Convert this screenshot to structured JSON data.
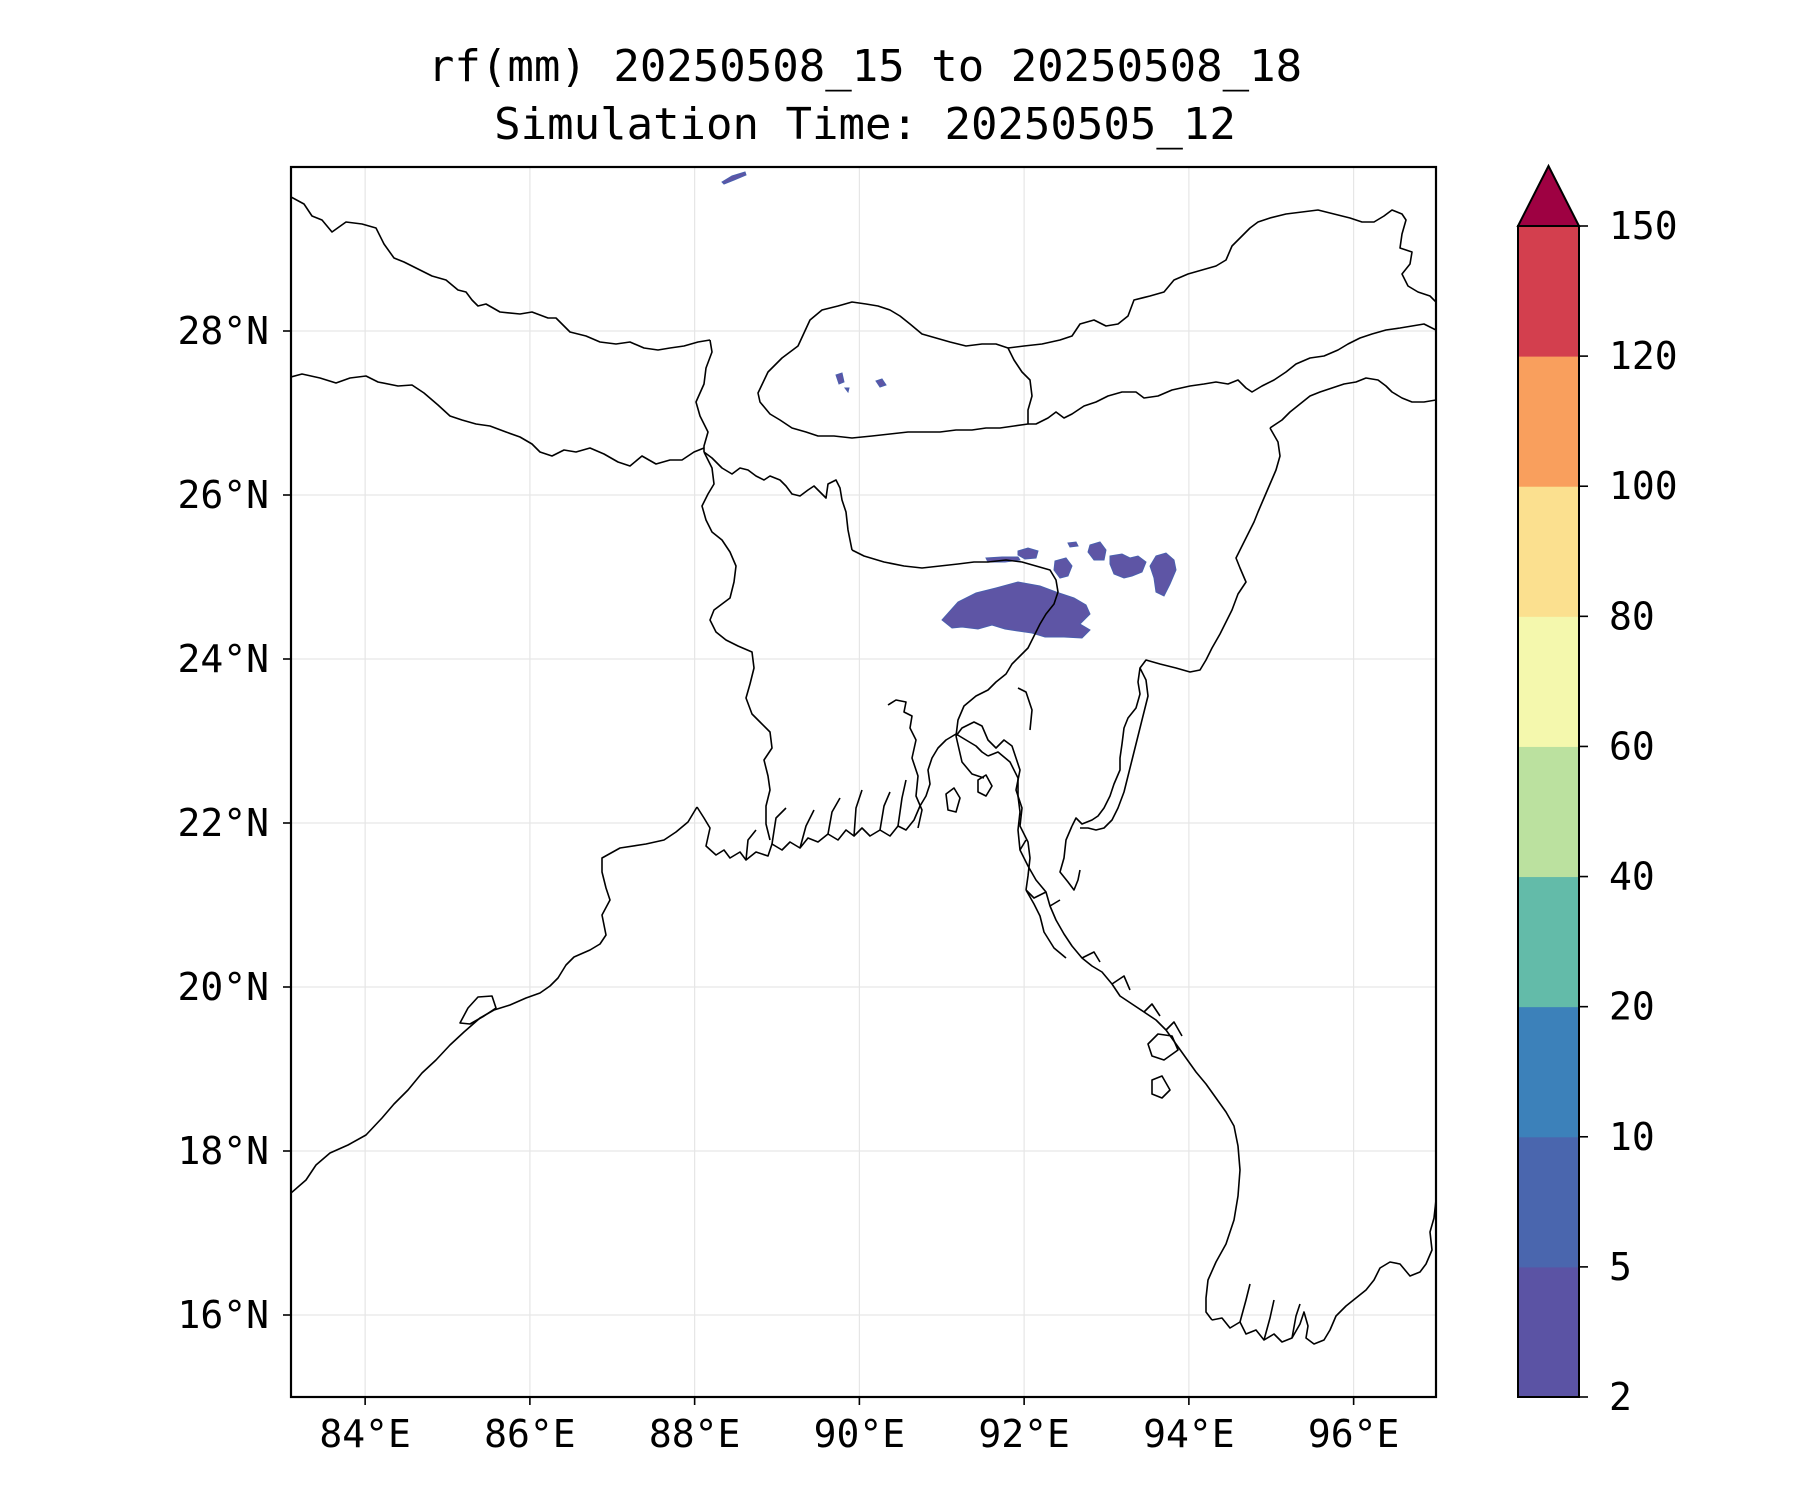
{
  "title": {
    "line1": "rf(mm) 20250508_15 to 20250508_18",
    "line2": "Simulation Time: 20250505_12"
  },
  "map": {
    "lon_range": [
      83.1,
      97.0
    ],
    "lat_range": [
      15.0,
      30.0
    ],
    "xticks": [
      {
        "value": 84,
        "label": "84°E"
      },
      {
        "value": 86,
        "label": "86°E"
      },
      {
        "value": 88,
        "label": "88°E"
      },
      {
        "value": 90,
        "label": "90°E"
      },
      {
        "value": 92,
        "label": "92°E"
      },
      {
        "value": 94,
        "label": "94°E"
      },
      {
        "value": 96,
        "label": "96°E"
      }
    ],
    "yticks": [
      {
        "value": 16,
        "label": "16°N"
      },
      {
        "value": 18,
        "label": "18°N"
      },
      {
        "value": 20,
        "label": "20°N"
      },
      {
        "value": 22,
        "label": "22°N"
      },
      {
        "value": 24,
        "label": "24°N"
      },
      {
        "value": 26,
        "label": "26°N"
      },
      {
        "value": 28,
        "label": "28°N"
      }
    ],
    "gridlines": true,
    "line_color": "#000000",
    "rain_color": "#5e55a5",
    "rain_edge_color": "#4a60ae"
  },
  "colorbar": {
    "levels": [
      "2",
      "5",
      "10",
      "20",
      "40",
      "60",
      "80",
      "100",
      "120",
      "150"
    ],
    "colors": [
      "#5b53a4",
      "#4a66ae",
      "#3c81ba",
      "#63bba9",
      "#bbe19f",
      "#f4f8ad",
      "#fbe08f",
      "#f99f5d",
      "#d33f4e"
    ],
    "extend_color": "#9e0142",
    "extend": "max"
  }
}
